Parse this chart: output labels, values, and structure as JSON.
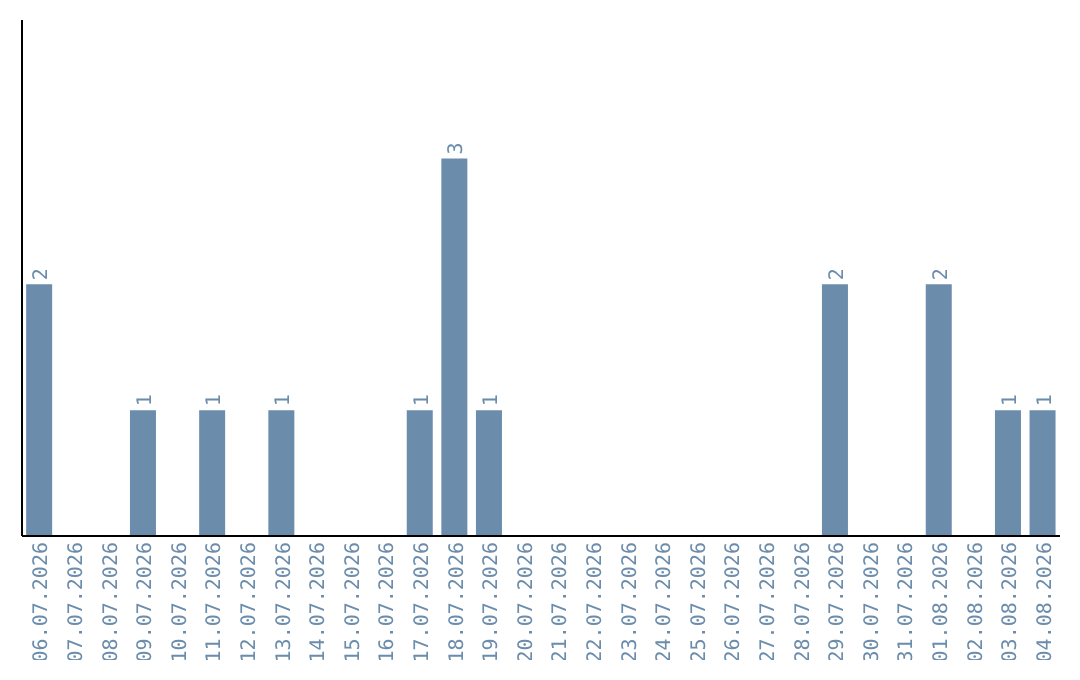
{
  "chart_data": {
    "type": "bar",
    "categories": [
      "06.07.2026",
      "07.07.2026",
      "08.07.2026",
      "09.07.2026",
      "10.07.2026",
      "11.07.2026",
      "12.07.2026",
      "13.07.2026",
      "14.07.2026",
      "15.07.2026",
      "16.07.2026",
      "17.07.2026",
      "18.07.2026",
      "19.07.2026",
      "20.07.2026",
      "21.07.2026",
      "22.07.2026",
      "23.07.2026",
      "24.07.2026",
      "25.07.2026",
      "26.07.2026",
      "27.07.2026",
      "28.07.2026",
      "29.07.2026",
      "30.07.2026",
      "31.07.2026",
      "01.08.2026",
      "02.08.2026",
      "03.08.2026",
      "04.08.2026"
    ],
    "values": [
      2,
      0,
      0,
      1,
      0,
      1,
      0,
      1,
      0,
      0,
      0,
      1,
      3,
      1,
      0,
      0,
      0,
      0,
      0,
      0,
      0,
      0,
      0,
      2,
      0,
      0,
      2,
      0,
      1,
      1
    ],
    "value_labels": [
      "2",
      null,
      null,
      "1",
      null,
      "1",
      null,
      "1",
      null,
      null,
      null,
      "1",
      "3",
      "1",
      null,
      null,
      null,
      null,
      null,
      null,
      null,
      null,
      null,
      "2",
      null,
      null,
      "2",
      null,
      "1",
      "1"
    ],
    "color": "#6b8cab",
    "ylim": [
      0,
      4.1
    ],
    "grid": false,
    "legend": false
  }
}
